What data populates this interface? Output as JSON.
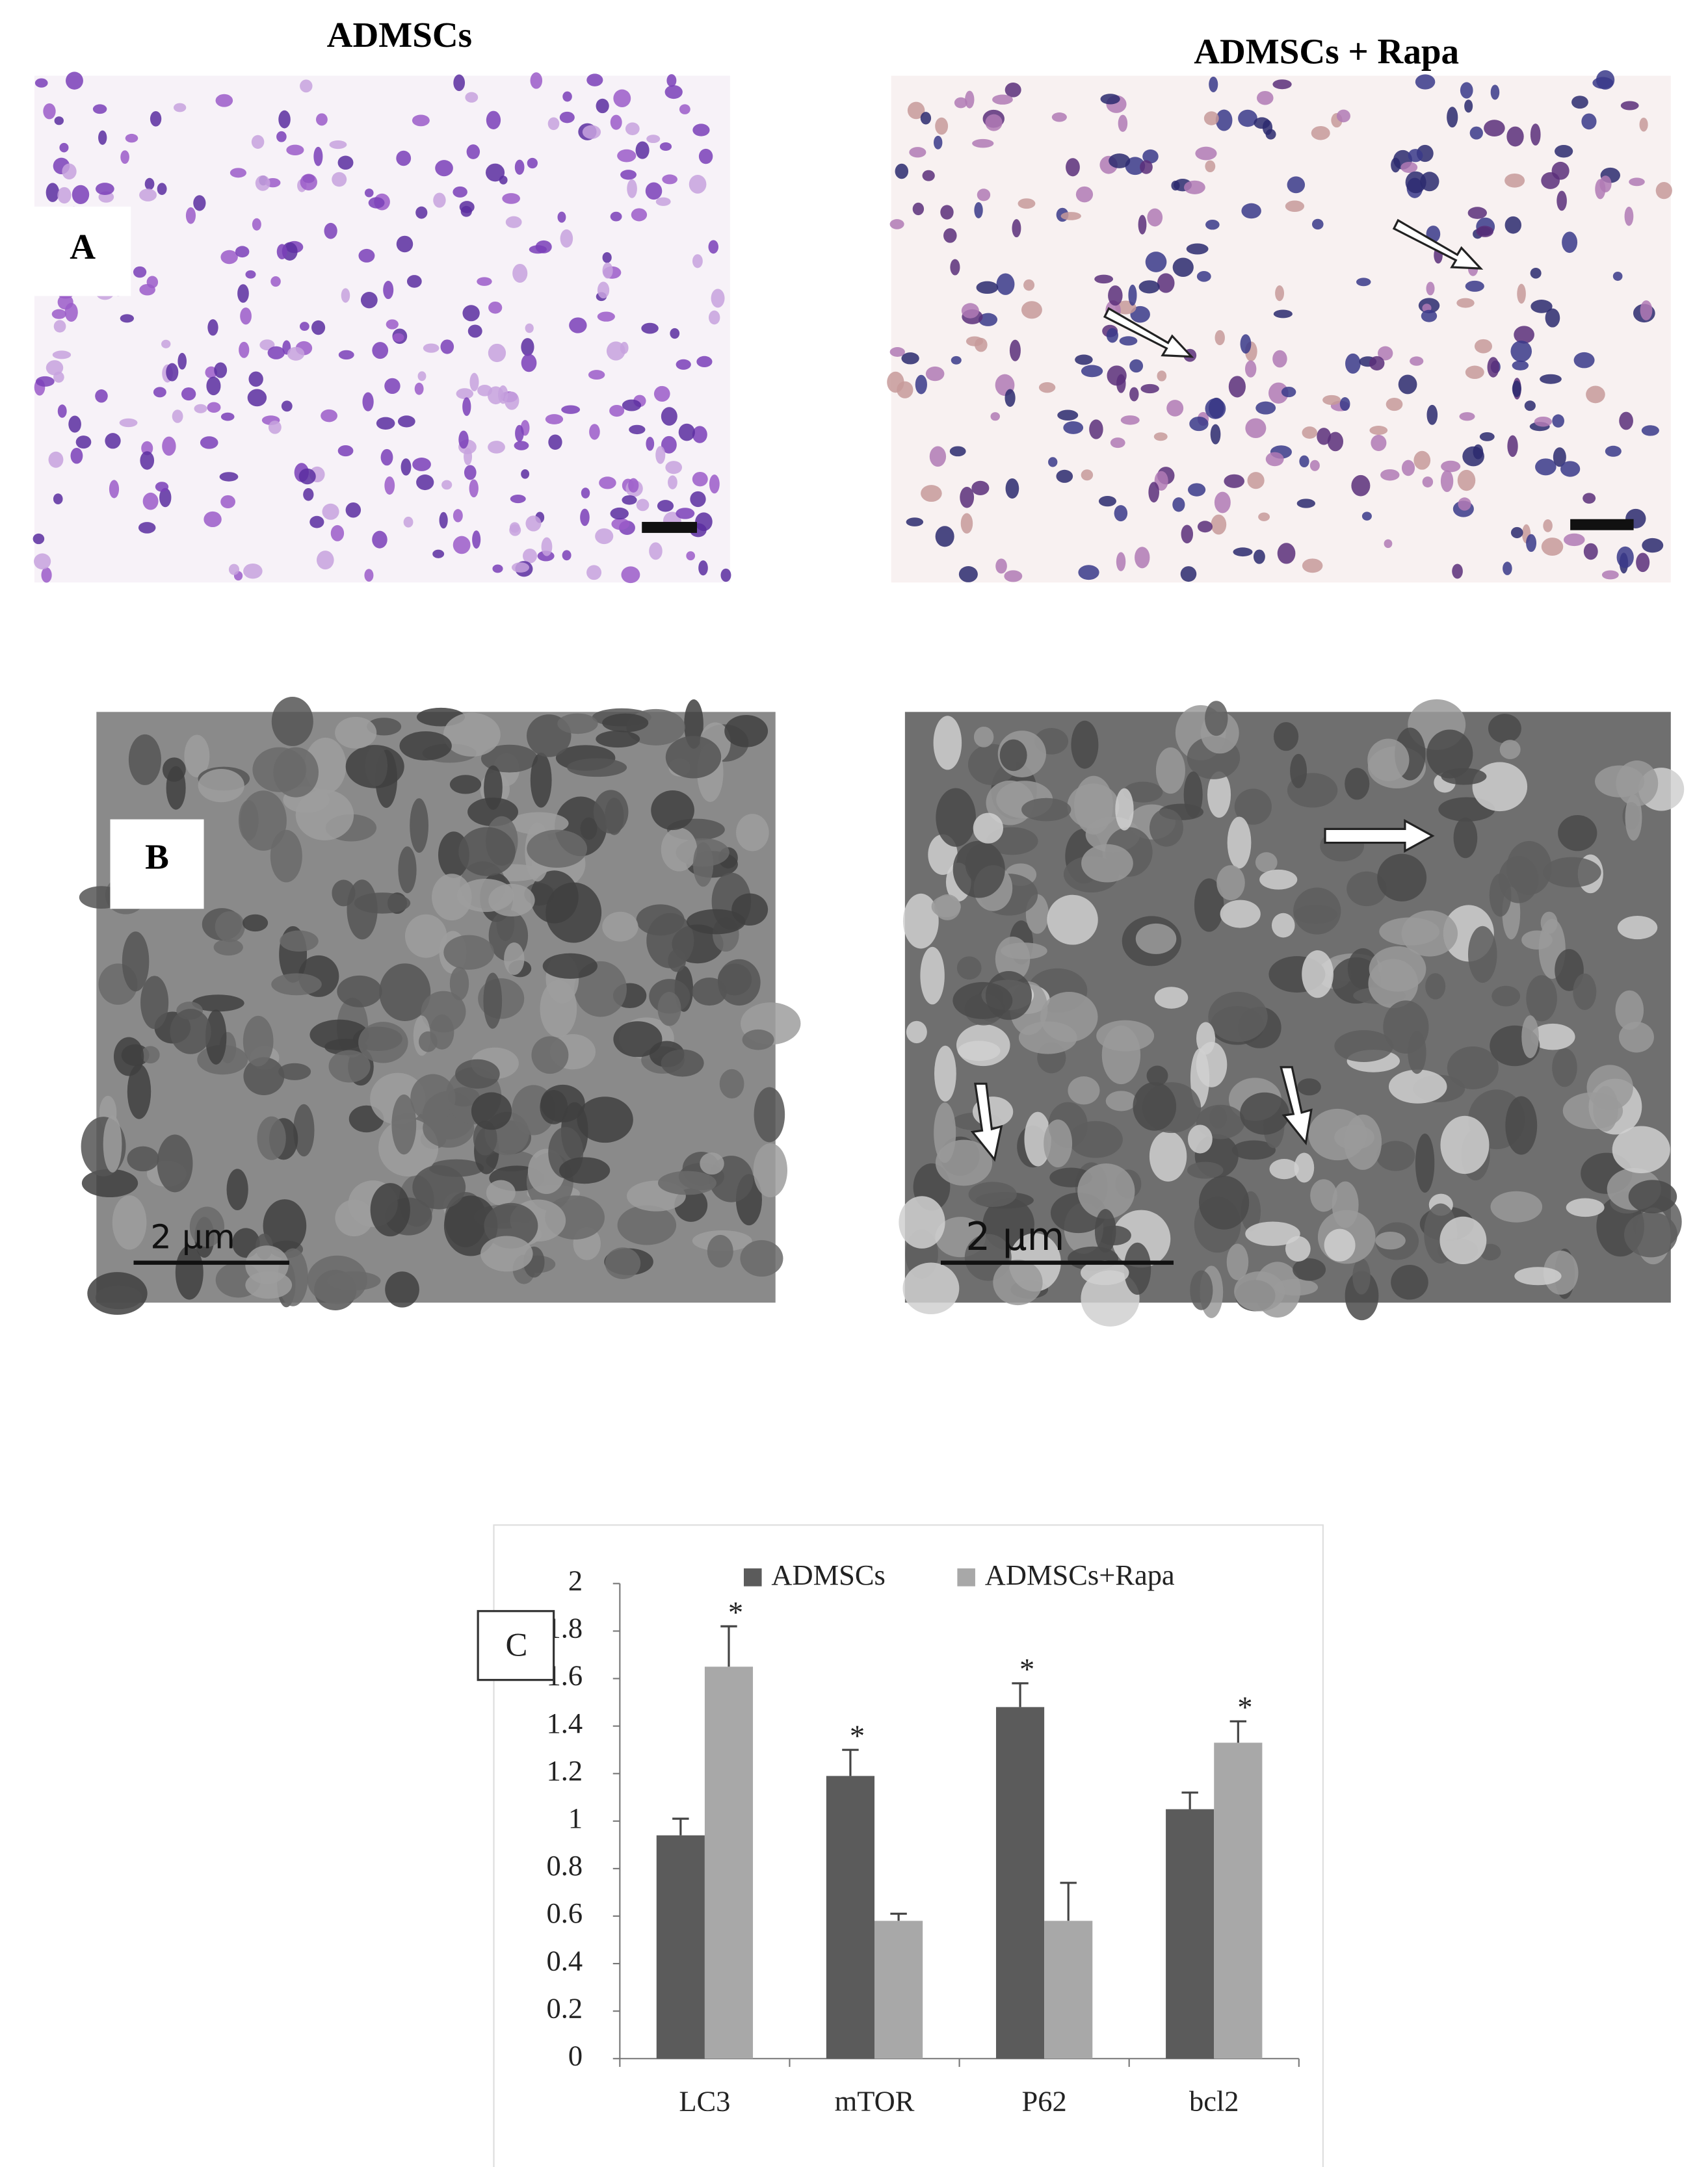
{
  "panels": {
    "a_left_title": "ADMSCs",
    "a_right_title": "ADMSCs + Rapa",
    "a_label": "A",
    "b_label": "B",
    "b_left_scale": "2 µm",
    "b_right_scale": "2 µm"
  },
  "chart_data": {
    "type": "bar",
    "panel_label": "C",
    "categories": [
      "LC3",
      "mTOR",
      "P62",
      "bcl2"
    ],
    "series": [
      {
        "name": "ADMSCs",
        "color": "#5b5b5b",
        "values": [
          0.94,
          1.19,
          1.48,
          1.05
        ],
        "errors": [
          0.07,
          0.11,
          0.1,
          0.07
        ],
        "annotations": [
          null,
          "*",
          "*",
          null
        ]
      },
      {
        "name": "ADMSCs+Rapa",
        "color": "#a8a8a8",
        "values": [
          1.65,
          0.58,
          0.58,
          1.33
        ],
        "errors": [
          0.17,
          0.03,
          0.16,
          0.09
        ],
        "annotations": [
          "*",
          null,
          null,
          "*"
        ]
      }
    ],
    "ylim": [
      0,
      2
    ],
    "yticks": [
      0,
      0.2,
      0.4,
      0.6,
      0.8,
      1,
      1.2,
      1.4,
      1.6,
      1.8,
      2
    ],
    "grid": false,
    "legend": "top"
  }
}
